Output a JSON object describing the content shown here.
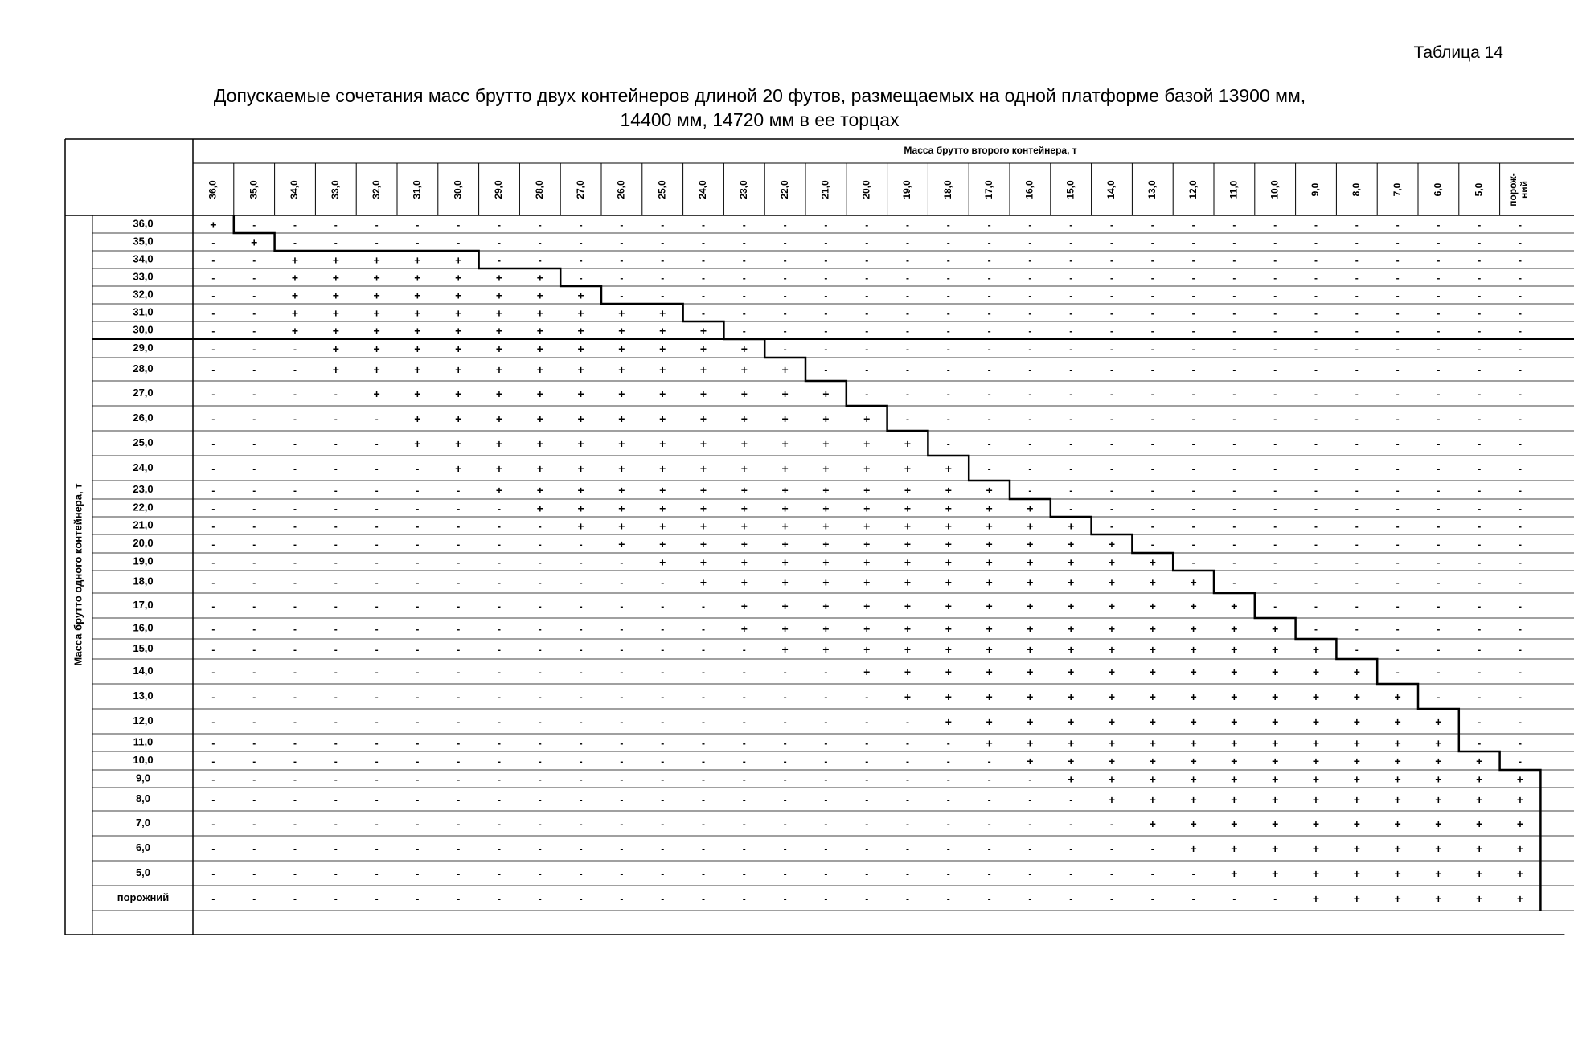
{
  "table_number": "Таблица 14",
  "title_line1": "Допускаемые сочетания масс брутто двух контейнеров длиной 20 футов, размещаемых на одной платформе базой 13900 мм,",
  "title_line2": "14400 мм, 14720 мм в ее торцах",
  "column_header": "Масса брутто второго контейнера, т",
  "row_header": "Масса брутто одного  контейнера, т",
  "column_masses": [
    "36,0",
    "35,0",
    "34,0",
    "33,0",
    "32,0",
    "31,0",
    "30,0",
    "29,0",
    "28,0",
    "27,0",
    "26,0",
    "25,0",
    "24,0",
    "23,0",
    "22,0",
    "21,0",
    "20,0",
    "19,0",
    "18,0",
    "17,0",
    "16,0",
    "15,0",
    "14,0",
    "13,0",
    "12,0",
    "11,0",
    "10,0",
    "9,0",
    "8,0",
    "7,0",
    "6,0",
    "5,0",
    "порож-\nний"
  ],
  "row_masses": [
    "36,0",
    "35,0",
    "34,0",
    "33,0",
    "32,0",
    "31,0",
    "30,0",
    "29,0",
    "28,0",
    "27,0",
    "26,0",
    "25,0",
    "24,0",
    "23,0",
    "22,0",
    "21,0",
    "20,0",
    "19,0",
    "18,0",
    "17,0",
    "16,0",
    "15,0",
    "14,0",
    "13,0",
    "12,0",
    "11,0",
    "10,0",
    "9,0",
    "8,0",
    "7,0",
    "6,0",
    "5,0",
    "порожний"
  ],
  "allowed_ranges": [
    [
      0,
      0
    ],
    [
      1,
      1
    ],
    [
      2,
      6
    ],
    [
      2,
      8
    ],
    [
      2,
      9
    ],
    [
      2,
      11
    ],
    [
      2,
      12
    ],
    [
      3,
      13
    ],
    [
      3,
      14
    ],
    [
      4,
      15
    ],
    [
      5,
      16
    ],
    [
      5,
      17
    ],
    [
      6,
      18
    ],
    [
      7,
      19
    ],
    [
      8,
      20
    ],
    [
      9,
      21
    ],
    [
      10,
      22
    ],
    [
      11,
      23
    ],
    [
      12,
      24
    ],
    [
      13,
      25
    ],
    [
      13,
      26
    ],
    [
      14,
      27
    ],
    [
      16,
      28
    ],
    [
      17,
      29
    ],
    [
      18,
      30
    ],
    [
      19,
      30
    ],
    [
      20,
      31
    ],
    [
      21,
      32
    ],
    [
      22,
      32
    ],
    [
      23,
      32
    ],
    [
      24,
      32
    ],
    [
      25,
      32
    ],
    [
      27,
      32
    ]
  ],
  "allowed_symbol": "+",
  "disallowed_symbol": "-"
}
